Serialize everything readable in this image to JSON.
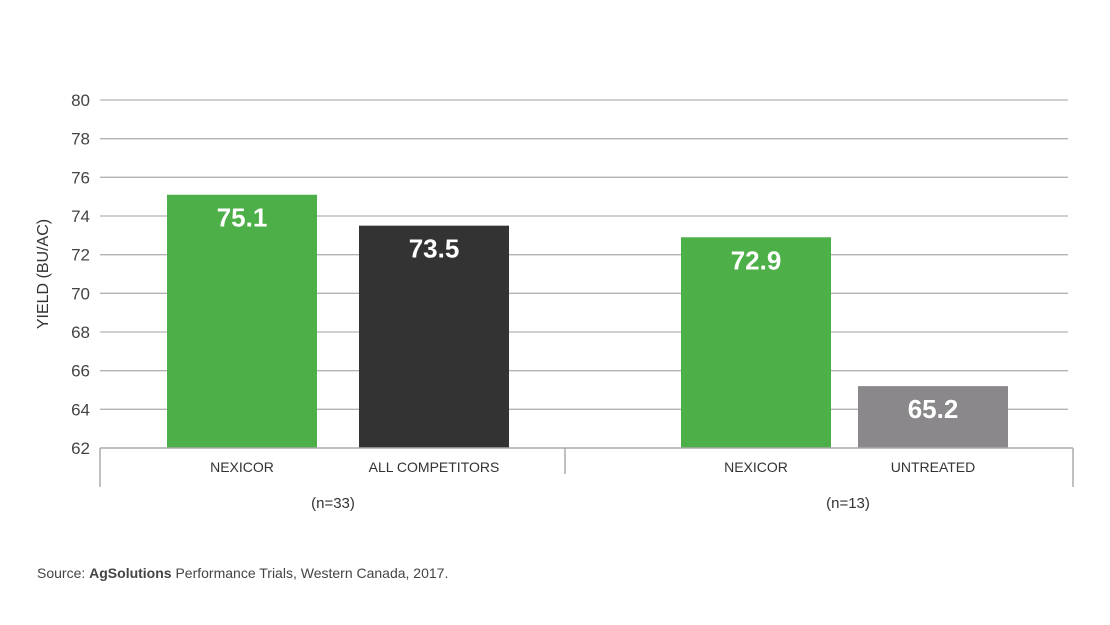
{
  "chart_data": {
    "type": "bar",
    "ylabel": "YIELD (BU/AC)",
    "ylim": [
      62,
      80
    ],
    "yticks": [
      62,
      64,
      66,
      68,
      70,
      72,
      74,
      76,
      78,
      80
    ],
    "grid": true,
    "groups": [
      {
        "label": "(n=33)",
        "bars": [
          {
            "category": "NEXICOR",
            "value": 75.1,
            "label": "75.1",
            "color": "#4caf47"
          },
          {
            "category": "ALL COMPETITORS",
            "value": 73.5,
            "label": "73.5",
            "color": "#333333"
          }
        ]
      },
      {
        "label": "(n=13)",
        "bars": [
          {
            "category": "NEXICOR",
            "value": 72.9,
            "label": "72.9",
            "color": "#4caf47"
          },
          {
            "category": "UNTREATED",
            "value": 65.2,
            "label": "65.2",
            "color": "#8a888a"
          }
        ]
      }
    ]
  },
  "source": {
    "prefix": "Source: ",
    "brand": "AgSolutions",
    "rest": " Performance Trials, Western Canada, 2017."
  }
}
